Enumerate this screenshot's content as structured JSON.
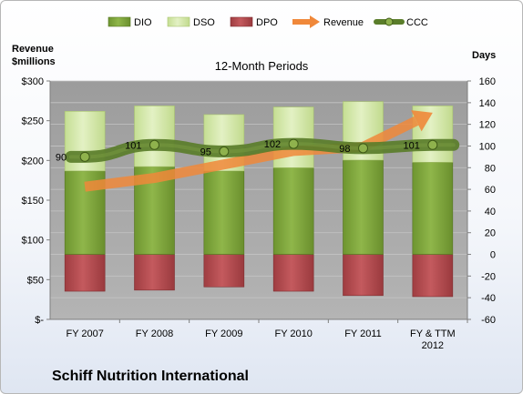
{
  "company": "Schiff Nutrition International",
  "colors": {
    "dio": "#7da33a",
    "dso": "#d4e8a8",
    "dpo": "#b24c50",
    "revenue": "#f0883a",
    "ccc": "#5a7d2a",
    "plot_bg": "#a8a8a8"
  },
  "chart_data": {
    "type": "bar",
    "title": "12-Month Periods",
    "y_left_label": [
      "Revenue",
      "$millions"
    ],
    "y_right_label": "Days",
    "categories": [
      "FY 2007",
      "FY 2008",
      "FY 2009",
      "FY 2010",
      "FY 2011",
      "FY & TTM 2012"
    ],
    "y_left_ticks": [
      "$-",
      "$50",
      "$100",
      "$150",
      "$200",
      "$250",
      "$300"
    ],
    "y_left_range": [
      0,
      300
    ],
    "y_right_ticks": [
      "-60",
      "-40",
      "-20",
      "0",
      "20",
      "40",
      "60",
      "80",
      "100",
      "120",
      "140",
      "160"
    ],
    "y_right_range": [
      -60,
      160
    ],
    "legend": [
      "DIO",
      "DSO",
      "DPO",
      "Revenue",
      "CCC"
    ],
    "legend_position": "top",
    "series": [
      {
        "name": "DIO",
        "axis": "right",
        "values": [
          77,
          81,
          77,
          80,
          87,
          85
        ]
      },
      {
        "name": "DSO",
        "axis": "right",
        "values": [
          55,
          56,
          52,
          56,
          54,
          52
        ]
      },
      {
        "name": "DPO",
        "axis": "right",
        "values": [
          -34,
          -33,
          -30,
          -34,
          -38,
          -39
        ]
      },
      {
        "name": "Revenue",
        "axis": "left",
        "values": [
          167,
          178,
          195,
          212,
          217,
          260
        ]
      },
      {
        "name": "CCC",
        "axis": "right",
        "values": [
          90,
          101,
          95,
          102,
          98,
          101
        ]
      }
    ],
    "ccc_labels": [
      "90",
      "101",
      "95",
      "102",
      "98",
      "101"
    ]
  }
}
